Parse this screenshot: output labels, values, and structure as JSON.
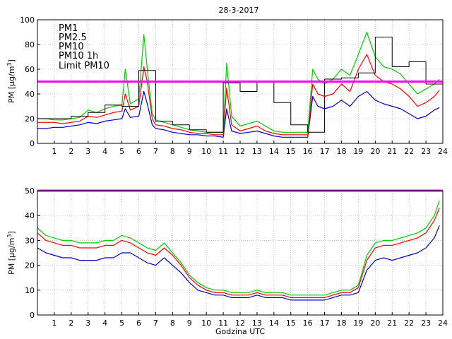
{
  "chart_data": [
    {
      "type": "line",
      "title": "28-3-2017",
      "ylabel": "PM [µg/m³]",
      "ylabel_base": "PM [µg/m",
      "ylabel_sup": "3",
      "ylabel_tail": "]",
      "xlabel": "",
      "xlim": [
        0,
        24
      ],
      "ylim": [
        0,
        100
      ],
      "x_ticks": [
        "1",
        "2",
        "3",
        "4",
        "5",
        "6",
        "7",
        "8",
        "9",
        "10",
        "11",
        "12",
        "13",
        "14",
        "15",
        "16",
        "17",
        "18",
        "19",
        "20",
        "21",
        "22",
        "23",
        "24"
      ],
      "y_ticks": [
        "0",
        "20",
        "40",
        "60",
        "80",
        "100"
      ],
      "grid": true,
      "legend_position": "top-left",
      "limit_line": {
        "name": "Limit PM10",
        "value": 50,
        "color": "#ff00ff"
      },
      "series": [
        {
          "name": "PM1",
          "color": "#0000cc",
          "x": [
            0,
            0.5,
            1,
            1.5,
            2,
            2.5,
            3,
            3.5,
            4,
            4.5,
            5,
            5.2,
            5.5,
            6,
            6.3,
            6.5,
            6.8,
            7,
            7.5,
            8,
            8.5,
            9,
            9.5,
            10,
            10.5,
            11,
            11.2,
            11.5,
            12,
            12.5,
            13,
            13.5,
            14,
            14.5,
            15,
            15.5,
            16,
            16.3,
            16.6,
            17,
            17.5,
            18,
            18.5,
            19,
            19.5,
            20,
            20.5,
            21,
            21.5,
            22,
            22.5,
            23,
            23.5,
            23.8
          ],
          "y": [
            12,
            12,
            13,
            13,
            14,
            15,
            17,
            16,
            18,
            19,
            20,
            28,
            21,
            22,
            42,
            32,
            15,
            12,
            11,
            9,
            8,
            7,
            7,
            6,
            6,
            5,
            28,
            10,
            8,
            9,
            10,
            8,
            6,
            5,
            5,
            5,
            5,
            38,
            30,
            28,
            30,
            35,
            30,
            38,
            42,
            35,
            32,
            30,
            28,
            24,
            20,
            22,
            27,
            29
          ]
        },
        {
          "name": "PM2.5",
          "color": "#ff0000",
          "x": [
            0,
            0.5,
            1,
            1.5,
            2,
            2.5,
            3,
            3.5,
            4,
            4.5,
            5,
            5.2,
            5.5,
            6,
            6.3,
            6.5,
            6.8,
            7,
            7.5,
            8,
            8.5,
            9,
            9.5,
            10,
            10.5,
            11,
            11.2,
            11.5,
            12,
            12.5,
            13,
            13.5,
            14,
            14.5,
            15,
            15.5,
            16,
            16.3,
            16.6,
            17,
            17.5,
            18,
            18.5,
            19,
            19.5,
            20,
            20.5,
            21,
            21.5,
            22,
            22.5,
            23,
            23.5,
            23.8
          ],
          "y": [
            17,
            17,
            17,
            16,
            17,
            18,
            22,
            21,
            23,
            25,
            26,
            40,
            27,
            30,
            62,
            50,
            20,
            15,
            14,
            12,
            11,
            9,
            8,
            8,
            7,
            7,
            45,
            15,
            10,
            12,
            14,
            10,
            8,
            7,
            7,
            7,
            7,
            48,
            40,
            38,
            40,
            48,
            42,
            60,
            72,
            55,
            50,
            48,
            44,
            38,
            30,
            33,
            38,
            43
          ]
        },
        {
          "name": "PM10",
          "color": "#00cc00",
          "x": [
            0,
            0.5,
            1,
            1.5,
            2,
            2.5,
            3,
            3.5,
            4,
            4.5,
            5,
            5.2,
            5.5,
            6,
            6.3,
            6.5,
            6.8,
            7,
            7.5,
            8,
            8.5,
            9,
            9.5,
            10,
            10.5,
            11,
            11.2,
            11.5,
            12,
            12.5,
            13,
            13.5,
            14,
            14.5,
            15,
            15.5,
            16,
            16.3,
            16.6,
            17,
            17.5,
            18,
            18.5,
            19,
            19.5,
            20,
            20.5,
            21,
            21.5,
            22,
            22.5,
            23,
            23.5,
            23.8
          ],
          "y": [
            20,
            20,
            19,
            19,
            20,
            21,
            27,
            25,
            28,
            30,
            31,
            60,
            32,
            36,
            88,
            60,
            24,
            19,
            17,
            15,
            13,
            11,
            10,
            9,
            9,
            9,
            65,
            22,
            14,
            16,
            18,
            14,
            10,
            9,
            9,
            9,
            9,
            60,
            52,
            48,
            52,
            60,
            55,
            72,
            90,
            70,
            62,
            60,
            56,
            48,
            40,
            44,
            48,
            52
          ]
        },
        {
          "name": "PM10 1h",
          "color": "#000000",
          "step": true,
          "x": [
            0,
            1,
            2,
            3,
            4,
            5,
            6,
            7,
            8,
            9,
            10,
            11,
            12,
            13,
            14,
            15,
            16,
            17,
            18,
            19,
            20,
            21,
            22,
            23,
            24
          ],
          "y": [
            20,
            20,
            22,
            25,
            31,
            30,
            59,
            18,
            15,
            11,
            9,
            49,
            42,
            50,
            33,
            15,
            9,
            52,
            53,
            57,
            86,
            62,
            66,
            48,
            48
          ]
        }
      ]
    },
    {
      "type": "line",
      "title": "",
      "ylabel": "PM [µg/m³]",
      "ylabel_base": "PM [µg/m",
      "ylabel_sup": "3",
      "ylabel_tail": "]",
      "xlabel": "Godzina UTC",
      "xlim": [
        0,
        24
      ],
      "ylim": [
        0,
        50
      ],
      "x_ticks": [
        "1",
        "2",
        "3",
        "4",
        "5",
        "6",
        "7",
        "8",
        "9",
        "10",
        "11",
        "12",
        "13",
        "14",
        "15",
        "16",
        "17",
        "18",
        "19",
        "20",
        "21",
        "22",
        "23",
        "24"
      ],
      "y_ticks": [
        "0",
        "10",
        "20",
        "30",
        "40",
        "50"
      ],
      "grid": true,
      "limit_line": {
        "name": "Limit PM10",
        "value": 50,
        "color": "#ff00ff"
      },
      "series": [
        {
          "name": "PM1",
          "color": "#0000cc",
          "x": [
            0,
            0.5,
            1,
            1.5,
            2,
            2.5,
            3,
            3.5,
            4,
            4.5,
            5,
            5.5,
            6,
            6.5,
            7,
            7.5,
            8,
            8.5,
            9,
            9.5,
            10,
            10.5,
            11,
            11.5,
            12,
            12.5,
            13,
            13.5,
            14,
            14.5,
            15,
            15.5,
            16,
            16.5,
            17,
            17.5,
            18,
            18.5,
            19,
            19.5,
            20,
            20.5,
            21,
            21.5,
            22,
            22.5,
            23,
            23.5,
            23.8
          ],
          "y": [
            27,
            25,
            24,
            23,
            23,
            22,
            22,
            22,
            23,
            23,
            25,
            25,
            23,
            21,
            20,
            23,
            20,
            17,
            13,
            10,
            9,
            8,
            8,
            7,
            7,
            7,
            8,
            7,
            7,
            7,
            6,
            6,
            6,
            6,
            6,
            7,
            8,
            8,
            9,
            18,
            22,
            23,
            22,
            23,
            24,
            25,
            27,
            31,
            36
          ]
        },
        {
          "name": "PM2.5",
          "color": "#ff0000",
          "x": [
            0,
            0.5,
            1,
            1.5,
            2,
            2.5,
            3,
            3.5,
            4,
            4.5,
            5,
            5.5,
            6,
            6.5,
            7,
            7.5,
            8,
            8.5,
            9,
            9.5,
            10,
            10.5,
            11,
            11.5,
            12,
            12.5,
            13,
            13.5,
            14,
            14.5,
            15,
            15.5,
            16,
            16.5,
            17,
            17.5,
            18,
            18.5,
            19,
            19.5,
            20,
            20.5,
            21,
            21.5,
            22,
            22.5,
            23,
            23.5,
            23.8
          ],
          "y": [
            33,
            30,
            29,
            28,
            28,
            27,
            27,
            27,
            28,
            28,
            30,
            29,
            27,
            25,
            24,
            27,
            24,
            20,
            15,
            12,
            10,
            9,
            9,
            8,
            8,
            8,
            9,
            8,
            8,
            8,
            7,
            7,
            7,
            7,
            7,
            8,
            9,
            9,
            11,
            22,
            27,
            28,
            28,
            29,
            30,
            31,
            33,
            38,
            43
          ]
        },
        {
          "name": "PM10",
          "color": "#00cc00",
          "x": [
            0,
            0.5,
            1,
            1.5,
            2,
            2.5,
            3,
            3.5,
            4,
            4.5,
            5,
            5.5,
            6,
            6.5,
            7,
            7.5,
            8,
            8.5,
            9,
            9.5,
            10,
            10.5,
            11,
            11.5,
            12,
            12.5,
            13,
            13.5,
            14,
            14.5,
            15,
            15.5,
            16,
            16.5,
            17,
            17.5,
            18,
            18.5,
            19,
            19.5,
            20,
            20.5,
            21,
            21.5,
            22,
            22.5,
            23,
            23.5,
            23.8
          ],
          "y": [
            35,
            32,
            31,
            30,
            30,
            29,
            29,
            29,
            30,
            30,
            32,
            31,
            29,
            27,
            26,
            29,
            25,
            21,
            16,
            13,
            11,
            10,
            10,
            9,
            9,
            9,
            10,
            9,
            9,
            9,
            8,
            8,
            8,
            8,
            8,
            9,
            10,
            10,
            12,
            24,
            29,
            30,
            30,
            31,
            32,
            33,
            35,
            40,
            46
          ]
        }
      ]
    }
  ]
}
